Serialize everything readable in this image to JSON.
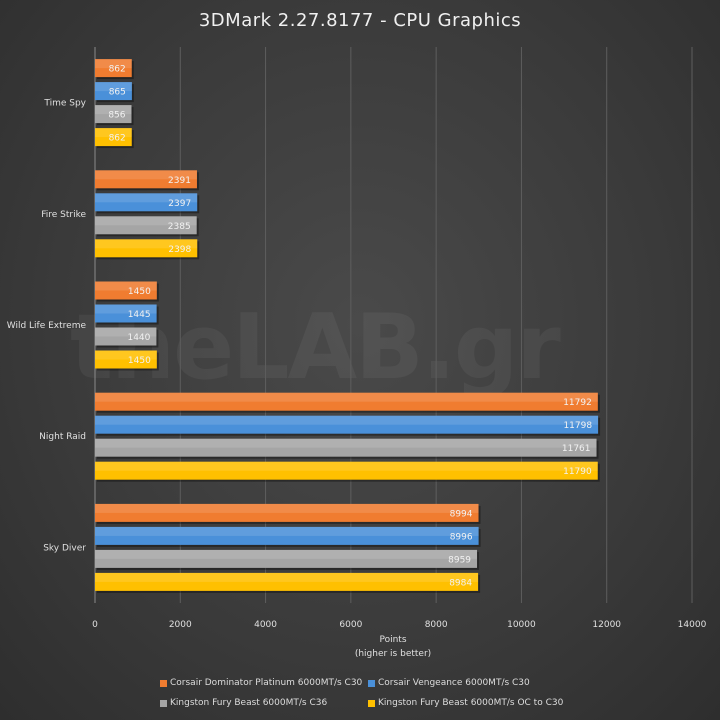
{
  "chart_data": {
    "type": "bar",
    "orientation": "horizontal",
    "title": "3DMark  2.27.8177 - CPU  Graphics",
    "xlabel": "Points",
    "xlabel_sub": "(higher is better)",
    "xlim": [
      0,
      14000
    ],
    "xticks": [
      0,
      2000,
      4000,
      6000,
      8000,
      10000,
      12000,
      14000
    ],
    "grid": true,
    "legend_position": "bottom",
    "categories": [
      "Time Spy",
      "Fire Strike",
      "Wild Life Extreme",
      "Night Raid",
      "Sky Diver"
    ],
    "series": [
      {
        "name": "Corsair Dominator Platinum 6000MT/s C30",
        "color": "#f07c30",
        "values": [
          862,
          2391,
          1450,
          11792,
          8994
        ]
      },
      {
        "name": "Corsair Vengeance 6000MT/s C30",
        "color": "#4a90d9",
        "values": [
          865,
          2397,
          1445,
          11798,
          8996
        ]
      },
      {
        "name": "Kingston Fury Beast 6000MT/s C36",
        "color": "#a5a5a5",
        "values": [
          856,
          2385,
          1440,
          11761,
          8959
        ]
      },
      {
        "name": "Kingston Fury Beast 6000MT/s OC to C30",
        "color": "#ffc000",
        "values": [
          862,
          2398,
          1450,
          11790,
          8984
        ]
      }
    ]
  },
  "watermark": "theLAB.gr"
}
